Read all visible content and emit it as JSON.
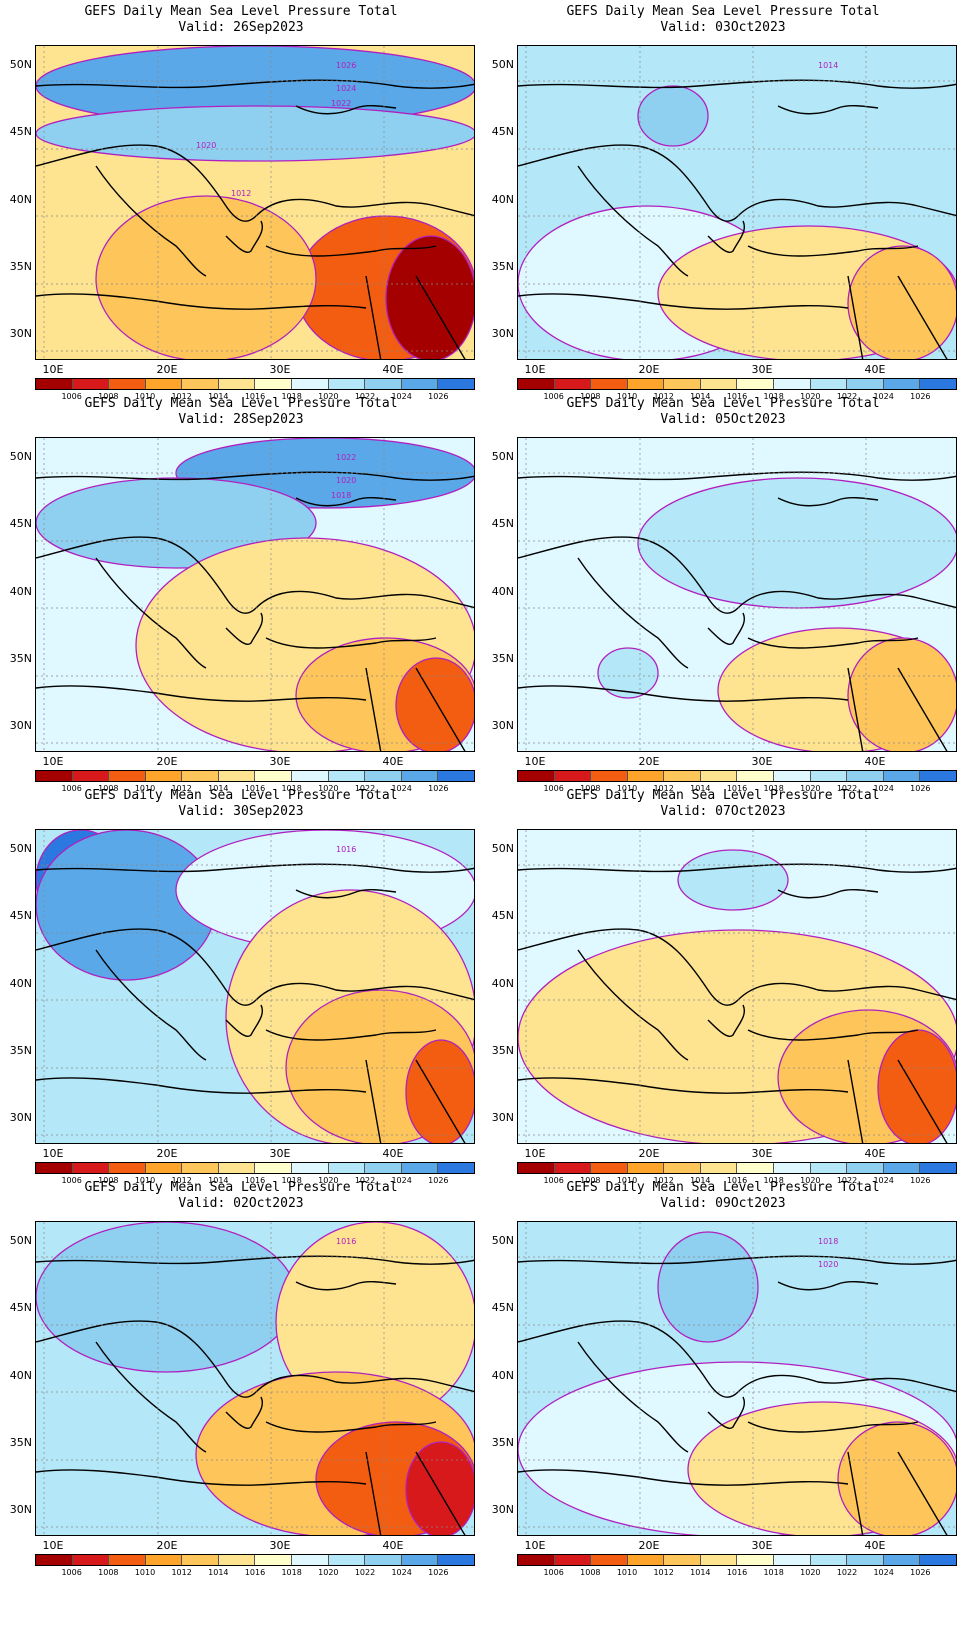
{
  "title_line1": "GEFS Daily Mean Sea Level Pressure Total",
  "lat_labels": [
    "50N",
    "45N",
    "40N",
    "35N",
    "30N"
  ],
  "lon_labels": [
    "10E",
    "20E",
    "30E",
    "40E"
  ],
  "colorbar": {
    "ticks": [
      "1006",
      "1008",
      "1010",
      "1012",
      "1014",
      "1016",
      "1018",
      "1020",
      "1022",
      "1024",
      "1026"
    ],
    "colors": [
      "#a50000",
      "#d7191c",
      "#f25d12",
      "#fca52a",
      "#fdc55a",
      "#fee391",
      "#ffffcc",
      "#e0f8ff",
      "#b4e8f8",
      "#8fd0f0",
      "#5aa8e8",
      "#2a78e0"
    ]
  },
  "panels": [
    {
      "valid": "Valid: 26Sep2023",
      "contour_labels": [
        "1026",
        "1024",
        "1022",
        "1020",
        "1012"
      ],
      "bg": "#fee391",
      "blobs": [
        [
          "#5aa8e8",
          0,
          0,
          440,
          80
        ],
        [
          "#8fd0f0",
          0,
          60,
          440,
          55
        ],
        [
          "#f25d12",
          260,
          170,
          180,
          145
        ],
        [
          "#a50000",
          350,
          190,
          90,
          125
        ],
        [
          "#fdc55a",
          60,
          150,
          220,
          165
        ]
      ]
    },
    {
      "valid": "Valid: 03Oct2023",
      "contour_labels": [
        "1014"
      ],
      "bg": "#b4e8f8",
      "blobs": [
        [
          "#e0f8ff",
          0,
          160,
          260,
          155
        ],
        [
          "#fee391",
          140,
          180,
          300,
          135
        ],
        [
          "#fdc55a",
          330,
          200,
          110,
          115
        ],
        [
          "#8fd0f0",
          120,
          40,
          70,
          60
        ]
      ]
    },
    {
      "valid": "Valid: 28Sep2023",
      "contour_labels": [
        "1022",
        "1020",
        "1018"
      ],
      "bg": "#e0f8ff",
      "blobs": [
        [
          "#5aa8e8",
          140,
          0,
          300,
          70
        ],
        [
          "#8fd0f0",
          0,
          40,
          280,
          90
        ],
        [
          "#fee391",
          100,
          100,
          340,
          215
        ],
        [
          "#fdc55a",
          260,
          200,
          180,
          115
        ],
        [
          "#f25d12",
          360,
          220,
          80,
          95
        ]
      ]
    },
    {
      "valid": "Valid: 05Oct2023",
      "contour_labels": [],
      "bg": "#e0f8ff",
      "blobs": [
        [
          "#b4e8f8",
          120,
          40,
          320,
          130
        ],
        [
          "#fee391",
          200,
          190,
          240,
          125
        ],
        [
          "#fdc55a",
          330,
          200,
          110,
          115
        ],
        [
          "#b4e8f8",
          80,
          210,
          60,
          50
        ]
      ]
    },
    {
      "valid": "Valid: 30Sep2023",
      "contour_labels": [
        "1016"
      ],
      "bg": "#b4e8f8",
      "blobs": [
        [
          "#2a78e0",
          0,
          0,
          90,
          100
        ],
        [
          "#5aa8e8",
          0,
          0,
          180,
          150
        ],
        [
          "#e0f8ff",
          140,
          0,
          300,
          120
        ],
        [
          "#fee391",
          190,
          60,
          250,
          255
        ],
        [
          "#fdc55a",
          250,
          160,
          190,
          155
        ],
        [
          "#f25d12",
          370,
          210,
          70,
          105
        ]
      ]
    },
    {
      "valid": "Valid: 07Oct2023",
      "contour_labels": [],
      "bg": "#e0f8ff",
      "blobs": [
        [
          "#fee391",
          0,
          100,
          440,
          215
        ],
        [
          "#fdc55a",
          260,
          180,
          180,
          135
        ],
        [
          "#f25d12",
          360,
          200,
          80,
          115
        ],
        [
          "#b4e8f8",
          160,
          20,
          110,
          60
        ]
      ]
    },
    {
      "valid": "Valid: 02Oct2023",
      "contour_labels": [
        "1016"
      ],
      "bg": "#b4e8f8",
      "blobs": [
        [
          "#8fd0f0",
          0,
          0,
          260,
          150
        ],
        [
          "#fee391",
          240,
          0,
          200,
          200
        ],
        [
          "#fdc55a",
          160,
          150,
          280,
          165
        ],
        [
          "#f25d12",
          280,
          200,
          160,
          115
        ],
        [
          "#d7191c",
          370,
          220,
          70,
          95
        ]
      ]
    },
    {
      "valid": "Valid: 09Oct2023",
      "contour_labels": [
        "1018",
        "1020"
      ],
      "bg": "#b4e8f8",
      "blobs": [
        [
          "#8fd0f0",
          140,
          10,
          100,
          110
        ],
        [
          "#e0f8ff",
          0,
          140,
          440,
          175
        ],
        [
          "#fee391",
          170,
          180,
          270,
          135
        ],
        [
          "#fdc55a",
          320,
          200,
          120,
          115
        ]
      ]
    }
  ]
}
